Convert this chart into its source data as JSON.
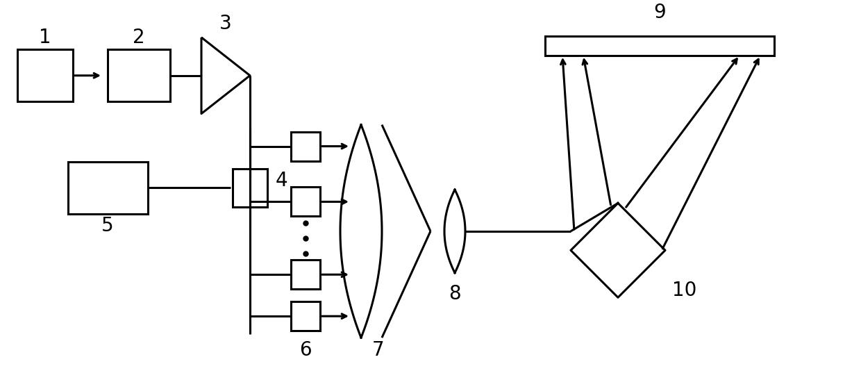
{
  "bg_color": "#ffffff",
  "lc": "#000000",
  "lw": 2.2,
  "fig_w": 12.4,
  "fig_h": 5.6,
  "dpi": 100
}
